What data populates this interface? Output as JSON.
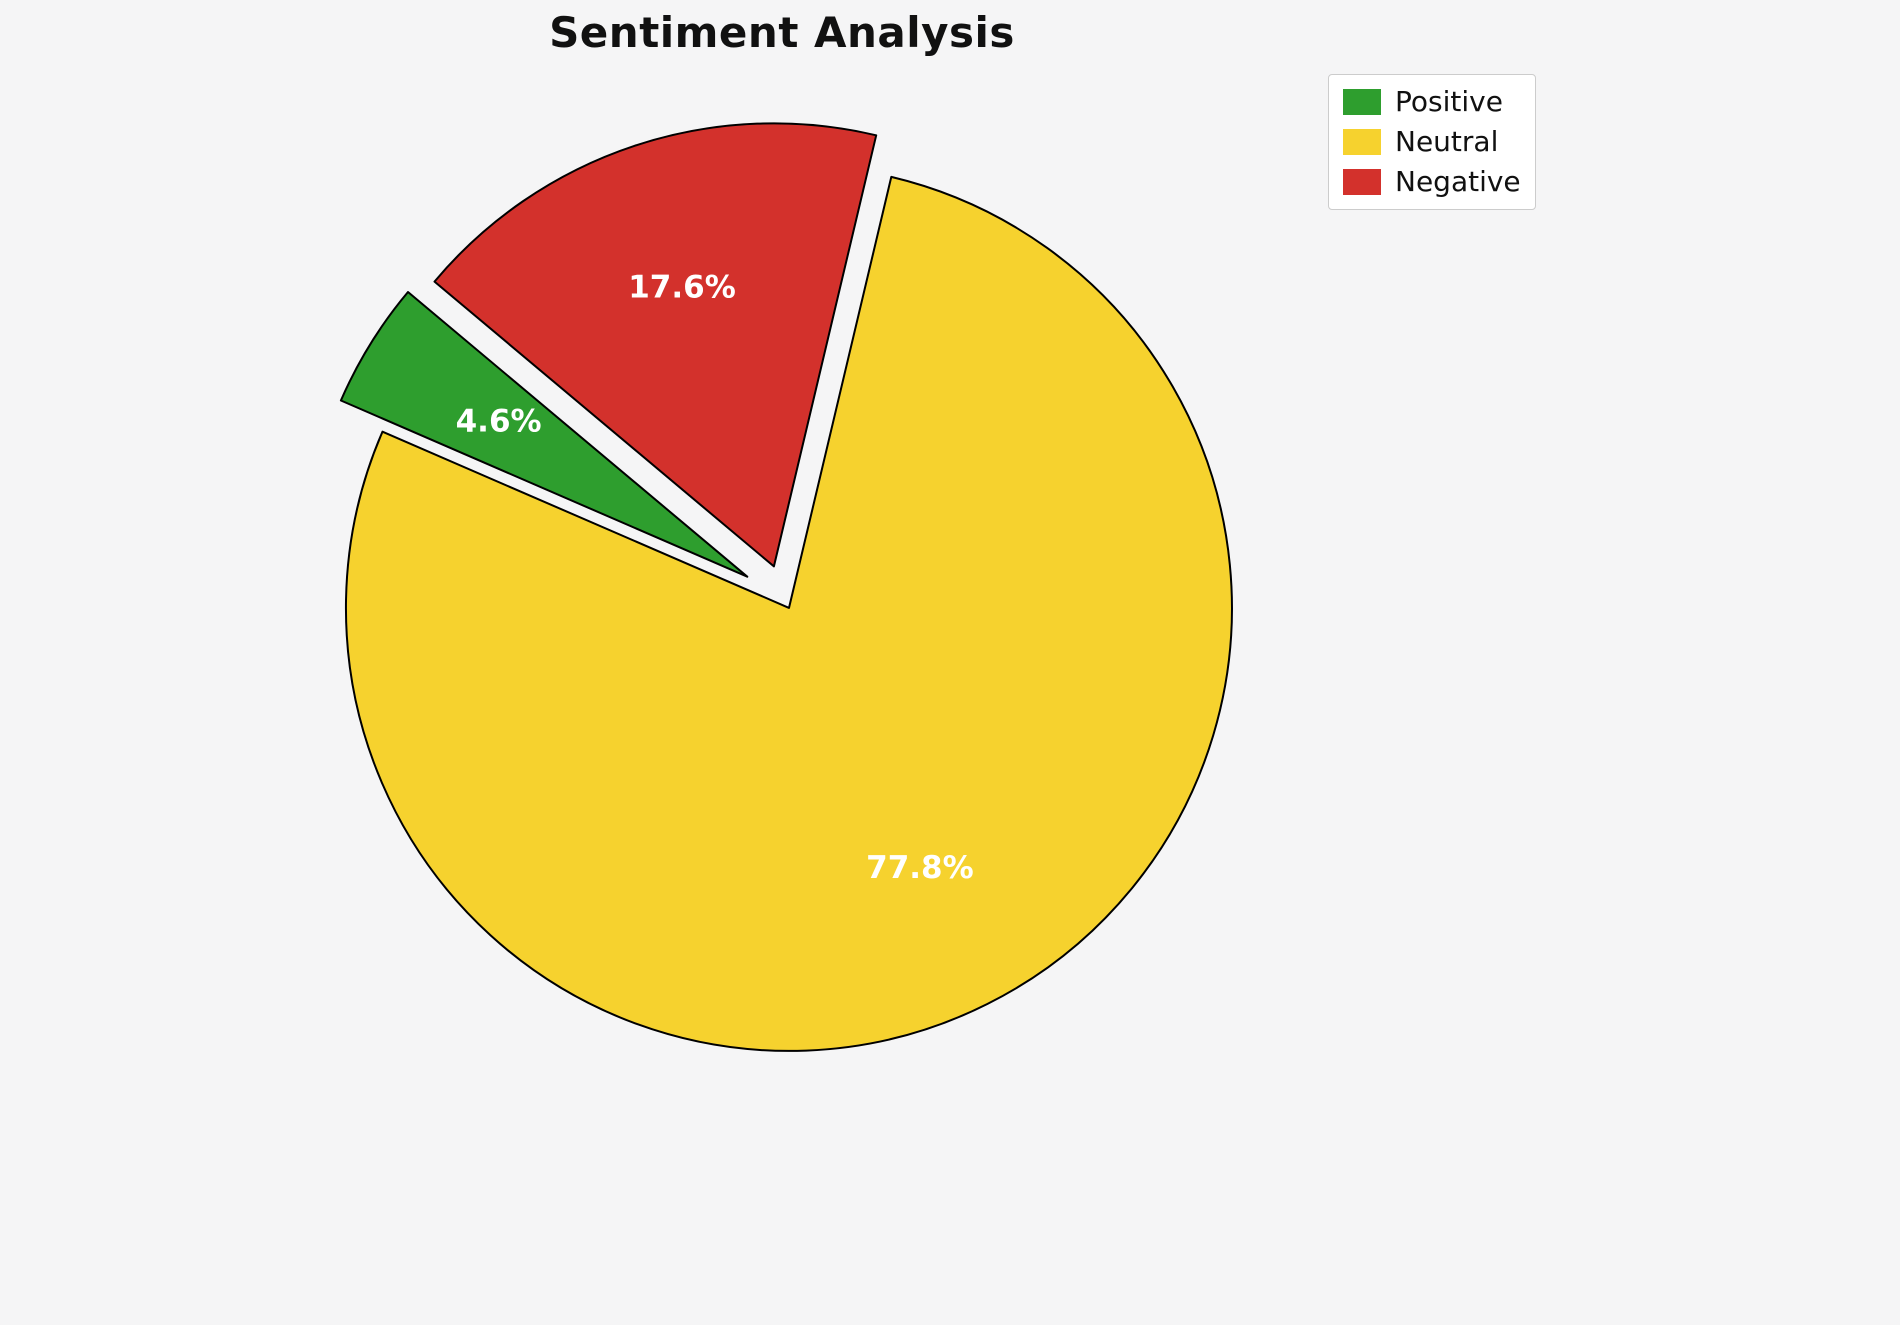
{
  "chart_data": {
    "type": "pie",
    "title": "Sentiment Analysis",
    "labels": [
      "Positive",
      "Neutral",
      "Negative"
    ],
    "values": [
      4.6,
      77.8,
      17.6
    ],
    "percent_labels": [
      "4.6%",
      "77.8%",
      "17.6%"
    ],
    "colors": [
      "#2e9e2e",
      "#f6d22e",
      "#d3312c"
    ],
    "explode": [
      0.1,
      0.02,
      0.08
    ],
    "startangle": 140,
    "direction": "counterclockwise",
    "pctdistance": 0.66,
    "percent_label_color": "#ffffff",
    "slice_edge_color": "#000000",
    "slice_edge_width": 2,
    "legend_position": "upper right",
    "background_color": "#f5f5f6",
    "legend": {
      "items": [
        {
          "label": "Positive",
          "color": "#2e9e2e"
        },
        {
          "label": "Neutral",
          "color": "#f6d22e"
        },
        {
          "label": "Negative",
          "color": "#d3312c"
        }
      ]
    }
  }
}
